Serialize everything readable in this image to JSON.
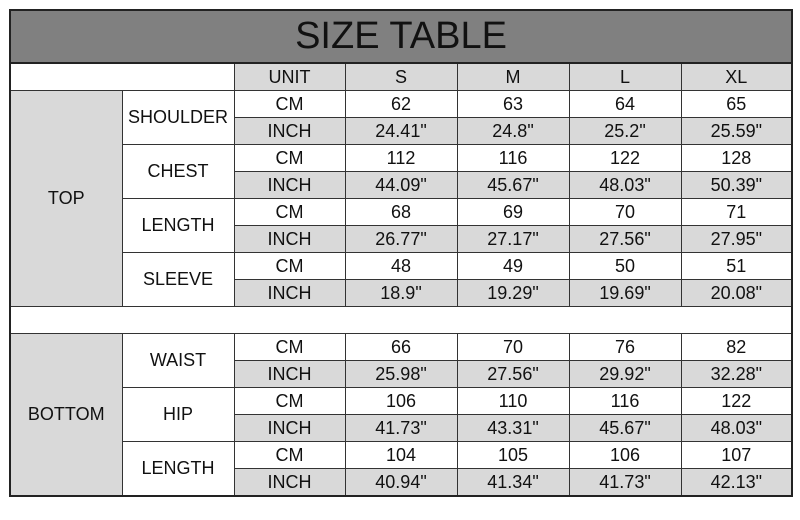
{
  "title": "SIZE TABLE",
  "header": {
    "unit": "UNIT",
    "sizes": [
      "S",
      "M",
      "L",
      "XL"
    ]
  },
  "colors": {
    "title_bg": "#808080",
    "shade": "#d9d9d9",
    "border": "#333333"
  },
  "sections": [
    {
      "name": "TOP",
      "measures": [
        {
          "name": "SHOULDER",
          "rows": [
            {
              "unit": "CM",
              "values": [
                "62",
                "63",
                "64",
                "65"
              ]
            },
            {
              "unit": "INCH",
              "values": [
                "24.41\"",
                "24.8\"",
                "25.2\"",
                "25.59\""
              ]
            }
          ]
        },
        {
          "name": "CHEST",
          "rows": [
            {
              "unit": "CM",
              "values": [
                "112",
                "116",
                "122",
                "128"
              ]
            },
            {
              "unit": "INCH",
              "values": [
                "44.09\"",
                "45.67\"",
                "48.03\"",
                "50.39\""
              ]
            }
          ]
        },
        {
          "name": "LENGTH",
          "rows": [
            {
              "unit": "CM",
              "values": [
                "68",
                "69",
                "70",
                "71"
              ]
            },
            {
              "unit": "INCH",
              "values": [
                "26.77\"",
                "27.17\"",
                "27.56\"",
                "27.95\""
              ]
            }
          ]
        },
        {
          "name": "SLEEVE",
          "rows": [
            {
              "unit": "CM",
              "values": [
                "48",
                "49",
                "50",
                "51"
              ]
            },
            {
              "unit": "INCH",
              "values": [
                "18.9\"",
                "19.29\"",
                "19.69\"",
                "20.08\""
              ]
            }
          ]
        }
      ]
    },
    {
      "name": "BOTTOM",
      "measures": [
        {
          "name": "WAIST",
          "rows": [
            {
              "unit": "CM",
              "values": [
                "66",
                "70",
                "76",
                "82"
              ]
            },
            {
              "unit": "INCH",
              "values": [
                "25.98\"",
                "27.56\"",
                "29.92\"",
                "32.28\""
              ]
            }
          ]
        },
        {
          "name": "HIP",
          "rows": [
            {
              "unit": "CM",
              "values": [
                "106",
                "110",
                "116",
                "122"
              ]
            },
            {
              "unit": "INCH",
              "values": [
                "41.73\"",
                "43.31\"",
                "45.67\"",
                "48.03\""
              ]
            }
          ]
        },
        {
          "name": "LENGTH",
          "rows": [
            {
              "unit": "CM",
              "values": [
                "104",
                "105",
                "106",
                "107"
              ]
            },
            {
              "unit": "INCH",
              "values": [
                "40.94\"",
                "41.34\"",
                "41.73\"",
                "42.13\""
              ]
            }
          ]
        }
      ]
    }
  ]
}
